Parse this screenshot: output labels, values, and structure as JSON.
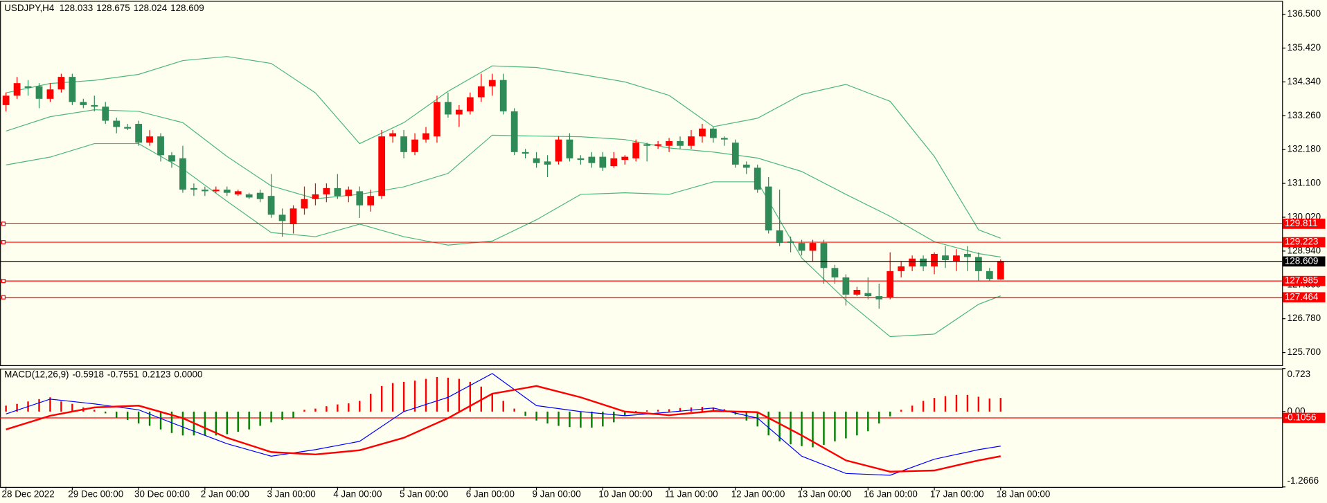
{
  "chart_data": [
    {
      "type": "candlestick",
      "title": "USDJPY,H4",
      "categories": [
        "28 Dec 2022",
        null,
        null,
        null,
        null,
        null,
        "29 Dec 00:00",
        null,
        null,
        null,
        null,
        null,
        "30 Dec 00:00",
        null,
        null,
        null,
        null,
        null,
        "2 Jan 00:00",
        null,
        null,
        null,
        null,
        null,
        "3 Jan 00:00",
        null,
        null,
        null,
        null,
        null,
        "4 Jan 00:00",
        null,
        null,
        null,
        null,
        null,
        "5 Jan 00:00",
        null,
        null,
        null,
        null,
        null,
        "6 Jan 00:00",
        null,
        null,
        null,
        null,
        null,
        "9 Jan 00:00",
        null,
        null,
        null,
        null,
        null,
        "10 Jan 00:00",
        null,
        null,
        null,
        null,
        null,
        "11 Jan 00:00",
        null,
        null,
        null,
        null,
        null,
        "12 Jan 00:00",
        null,
        null,
        null,
        null,
        null,
        "13 Jan 00:00",
        null,
        null,
        null,
        null,
        null,
        "16 Jan 00:00",
        null,
        null,
        null,
        null,
        null,
        "17 Jan 00:00",
        null,
        null,
        null,
        null,
        null,
        "18 Jan 00:00"
      ],
      "open": [
        133.6,
        133.9,
        134.2,
        134.2,
        133.8,
        134.1,
        134.5,
        133.7,
        133.6,
        133.55,
        133.1,
        132.9,
        133.0,
        132.4,
        132.6,
        132.0,
        131.9,
        130.95,
        130.9,
        130.85,
        130.9,
        130.75,
        130.75,
        130.8,
        130.7,
        130.1,
        129.8,
        130.3,
        130.6,
        130.75,
        130.95,
        130.7,
        130.85,
        130.4,
        130.7,
        132.6,
        132.6,
        132.1,
        132.5,
        132.6,
        133.7,
        133.3,
        133.4,
        133.85,
        134.2,
        134.4,
        133.4,
        132.1,
        131.9,
        131.8,
        131.8,
        132.5,
        131.9,
        131.95,
        131.95,
        131.65,
        131.85,
        131.9,
        132.35,
        132.3,
        132.3,
        132.45,
        132.3,
        132.6,
        132.85,
        132.55,
        132.4,
        131.7,
        131.6,
        131.0,
        129.6,
        129.25,
        129.2,
        128.95,
        129.2,
        128.4,
        128.1,
        127.55,
        127.6,
        127.5,
        127.45,
        128.3,
        128.45,
        128.7,
        128.45,
        128.8,
        128.6,
        128.85,
        128.75,
        128.3,
        128.033
      ],
      "high": [
        134.0,
        134.5,
        134.4,
        134.3,
        134.3,
        134.6,
        134.6,
        133.8,
        133.9,
        133.7,
        133.2,
        133.0,
        133.1,
        132.8,
        132.7,
        132.1,
        132.3,
        131.1,
        131.0,
        131.0,
        131.0,
        130.9,
        130.8,
        130.9,
        131.4,
        130.3,
        130.4,
        131.0,
        131.1,
        131.1,
        131.4,
        131.0,
        131.0,
        130.9,
        132.8,
        132.8,
        132.8,
        132.7,
        132.9,
        133.9,
        134.0,
        133.6,
        134.0,
        134.6,
        134.6,
        134.6,
        133.5,
        132.2,
        132.1,
        132.0,
        132.6,
        132.7,
        132.0,
        132.1,
        132.1,
        132.1,
        132.0,
        132.5,
        132.4,
        132.45,
        132.55,
        132.6,
        132.8,
        133.0,
        132.9,
        132.6,
        132.5,
        131.8,
        131.7,
        131.3,
        130.9,
        129.4,
        129.3,
        129.3,
        129.3,
        128.5,
        128.2,
        127.8,
        128.1,
        127.9,
        128.9,
        128.6,
        128.8,
        128.8,
        128.9,
        129.1,
        129.0,
        129.1,
        128.9,
        128.4,
        128.675
      ],
      "low": [
        133.4,
        133.8,
        133.9,
        133.5,
        133.7,
        134.0,
        133.6,
        133.5,
        133.4,
        133.0,
        132.7,
        132.8,
        132.3,
        132.3,
        131.8,
        131.6,
        130.8,
        130.7,
        130.7,
        130.8,
        130.7,
        130.7,
        130.6,
        130.5,
        130.0,
        129.4,
        129.5,
        130.1,
        130.4,
        130.5,
        130.6,
        130.5,
        130.0,
        130.2,
        130.6,
        132.4,
        131.9,
        132.0,
        132.4,
        132.4,
        133.2,
        132.9,
        133.3,
        133.7,
        133.9,
        133.3,
        132.0,
        131.9,
        131.6,
        131.3,
        131.7,
        131.8,
        131.7,
        131.6,
        131.5,
        131.6,
        131.7,
        131.8,
        131.8,
        132.2,
        132.1,
        132.2,
        132.2,
        132.4,
        132.4,
        132.3,
        131.6,
        131.4,
        130.8,
        129.5,
        129.1,
        128.9,
        128.8,
        128.6,
        127.9,
        127.9,
        127.2,
        127.5,
        127.4,
        127.1,
        127.4,
        128.1,
        128.3,
        128.3,
        128.2,
        128.4,
        128.3,
        128.3,
        128.0,
        128.0,
        128.024
      ],
      "close": [
        133.9,
        134.3,
        134.15,
        133.8,
        134.1,
        134.5,
        133.7,
        133.6,
        133.55,
        133.1,
        132.9,
        132.85,
        132.4,
        132.6,
        132.0,
        131.8,
        130.9,
        130.9,
        130.85,
        130.9,
        130.8,
        130.85,
        130.65,
        130.6,
        130.1,
        129.9,
        130.3,
        130.6,
        130.75,
        130.95,
        130.7,
        130.9,
        130.4,
        130.7,
        132.6,
        132.7,
        132.1,
        132.5,
        132.7,
        133.7,
        133.3,
        133.45,
        133.85,
        134.2,
        134.4,
        133.4,
        132.1,
        132.05,
        131.75,
        131.7,
        132.5,
        131.9,
        131.85,
        131.75,
        131.6,
        131.9,
        131.95,
        132.4,
        132.3,
        132.35,
        132.45,
        132.3,
        132.6,
        132.85,
        132.55,
        132.5,
        131.7,
        131.6,
        130.9,
        129.6,
        129.2,
        129.2,
        128.95,
        129.2,
        128.4,
        128.1,
        127.55,
        127.7,
        127.5,
        127.4,
        128.3,
        128.45,
        128.7,
        128.45,
        128.85,
        128.65,
        128.8,
        128.75,
        128.3,
        128.05,
        128.609
      ],
      "up_color": "#ff0000",
      "down_color": "#2e8b57",
      "bands": [
        {
          "color": "#4cb87a",
          "x": [
            0,
            4,
            8,
            12,
            16,
            20,
            24,
            28,
            32,
            36,
            40,
            44,
            48,
            52,
            56,
            60,
            64,
            68,
            72,
            76,
            80,
            84,
            88,
            90
          ],
          "values": [
            133.99,
            134.29,
            134.39,
            134.58,
            135.02,
            135.15,
            134.93,
            133.99,
            132.37,
            133.04,
            134.04,
            134.85,
            134.8,
            134.58,
            134.34,
            133.91,
            132.91,
            133.18,
            133.94,
            134.26,
            133.72,
            131.96,
            129.62,
            129.35
          ]
        },
        {
          "color": "#4cb87a",
          "x": [
            0,
            4,
            8,
            12,
            16,
            20,
            24,
            28,
            32,
            36,
            40,
            44,
            48,
            52,
            56,
            60,
            64,
            68,
            72,
            76,
            80,
            84,
            88,
            90
          ],
          "values": [
            132.77,
            133.23,
            133.45,
            133.4,
            133.04,
            131.96,
            131.02,
            130.61,
            130.75,
            130.99,
            131.42,
            132.64,
            132.61,
            132.59,
            132.5,
            132.23,
            132.1,
            131.91,
            131.48,
            130.75,
            130.05,
            129.24,
            128.86,
            128.75
          ]
        },
        {
          "color": "#4cb87a",
          "x": [
            0,
            4,
            8,
            12,
            16,
            20,
            24,
            28,
            32,
            36,
            40,
            44,
            48,
            52,
            56,
            60,
            64,
            68,
            72,
            76,
            80,
            84,
            88,
            90
          ],
          "values": [
            131.69,
            131.94,
            132.37,
            132.37,
            131.56,
            130.53,
            129.53,
            129.4,
            129.8,
            129.4,
            129.13,
            129.26,
            129.94,
            130.75,
            130.8,
            130.75,
            131.15,
            131.15,
            128.72,
            127.37,
            126.21,
            126.29,
            127.24,
            127.51
          ]
        }
      ],
      "levels": [
        129.811,
        129.223,
        127.985,
        127.464
      ],
      "level_color": "#ff0000",
      "bid_color": "#000000",
      "ylim": [
        125.27,
        136.9
      ],
      "yticks": [
        {
          "value": 136.5,
          "label": "136.500"
        },
        {
          "value": 135.42,
          "label": "135.420"
        },
        {
          "value": 134.34,
          "label": "134.340"
        },
        {
          "value": 133.26,
          "label": "133.260"
        },
        {
          "value": 132.18,
          "label": "132.180"
        },
        {
          "value": 131.1,
          "label": "131.100"
        },
        {
          "value": 130.02,
          "label": "130.020"
        },
        {
          "value": 128.94,
          "label": "128.940"
        },
        {
          "value": 127.86,
          "label": "127.860"
        },
        {
          "value": 126.78,
          "label": "126.780"
        },
        {
          "value": 125.7,
          "label": "125.700"
        }
      ]
    },
    {
      "type": "macd",
      "title": "MACD(12,26,9)",
      "readout": [
        -0.5918,
        -0.7551,
        0.2123,
        {
          "value": 0,
          "label": "0.0000"
        }
      ],
      "histogram": [
        0.1,
        0.13,
        0.17,
        0.21,
        0.24,
        0.17,
        0.13,
        0.07,
        0.03,
        -0.03,
        -0.1,
        -0.14,
        -0.2,
        -0.24,
        -0.3,
        -0.36,
        -0.4,
        -0.4,
        -0.4,
        -0.4,
        -0.38,
        -0.34,
        -0.3,
        -0.24,
        -0.18,
        -0.14,
        -0.1,
        0.03,
        0.05,
        0.09,
        0.12,
        0.14,
        0.18,
        0.3,
        0.43,
        0.48,
        0.5,
        0.52,
        0.55,
        0.58,
        0.57,
        0.55,
        0.5,
        0.42,
        0.31,
        0.18,
        0.05,
        -0.07,
        -0.15,
        -0.2,
        -0.24,
        -0.26,
        -0.27,
        -0.27,
        -0.25,
        -0.18,
        -0.07,
        0.01,
        0.02,
        0.03,
        0.04,
        0.06,
        0.07,
        0.08,
        0.07,
        0.04,
        -0.05,
        -0.15,
        -0.25,
        -0.4,
        -0.5,
        -0.55,
        -0.58,
        -0.6,
        -0.56,
        -0.5,
        -0.45,
        -0.4,
        -0.33,
        -0.2,
        -0.08,
        0.03,
        0.1,
        0.18,
        0.23,
        0.26,
        0.28,
        0.28,
        0.25,
        0.22,
        0.23
      ],
      "up_color": "#ff0000",
      "down_color": "#008000",
      "series": [
        {
          "color": "#0000ff",
          "x": [
            0,
            4,
            8,
            12,
            16,
            20,
            24,
            28,
            32,
            36,
            40,
            44,
            48,
            52,
            56,
            60,
            64,
            68,
            72,
            76,
            80,
            84,
            88,
            90
          ],
          "values": [
            -0.04,
            0.21,
            0.13,
            0.03,
            -0.26,
            -0.54,
            -0.75,
            -0.64,
            -0.5,
            0.0,
            0.24,
            0.64,
            0.1,
            0.0,
            -0.07,
            -0.01,
            0.06,
            -0.11,
            -0.75,
            -1.04,
            -1.07,
            -0.8,
            -0.64,
            -0.58
          ]
        },
        {
          "color": "#ff0000",
          "x": [
            0,
            4,
            8,
            12,
            16,
            20,
            24,
            28,
            32,
            36,
            40,
            44,
            48,
            52,
            56,
            60,
            64,
            68,
            72,
            76,
            80,
            84,
            88,
            90
          ],
          "values": [
            -0.3,
            -0.07,
            0.07,
            0.1,
            -0.11,
            -0.44,
            -0.68,
            -0.72,
            -0.65,
            -0.44,
            -0.11,
            0.3,
            0.43,
            0.24,
            0.0,
            -0.06,
            0.01,
            -0.01,
            -0.4,
            -0.82,
            -1.01,
            -0.99,
            -0.82,
            -0.75
          ]
        }
      ],
      "levels": [
        -0.1056
      ],
      "level_color": "#ff0000",
      "ylim": [
        -1.2666,
        0.723
      ],
      "yticks": [
        0.723,
        {
          "value": 0,
          "label": "0.00"
        },
        -1.2666
      ]
    }
  ]
}
